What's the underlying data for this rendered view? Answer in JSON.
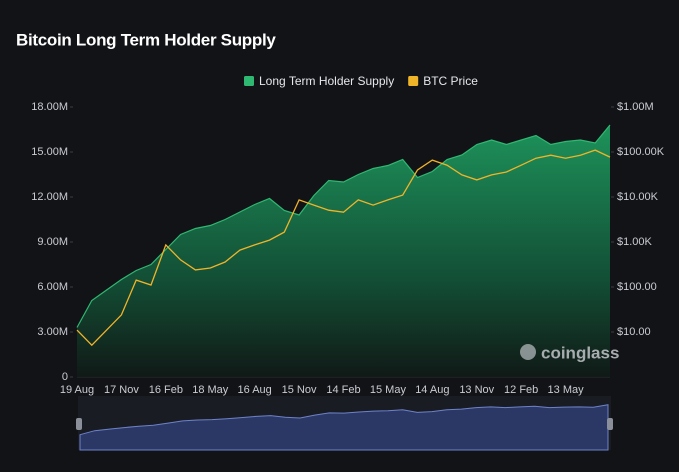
{
  "chart_data": {
    "type": "area-line",
    "title": "Bitcoin Long Term Holder Supply",
    "watermark": "coinglass",
    "categories": [
      "19 Aug",
      null,
      null,
      "17 Nov",
      null,
      null,
      "16 Feb",
      null,
      null,
      "18 May",
      null,
      null,
      "16 Aug",
      null,
      null,
      "15 Nov",
      null,
      null,
      "14 Feb",
      null,
      null,
      "15 May",
      null,
      null,
      "14 Aug",
      null,
      null,
      "13 Nov",
      null,
      null,
      "12 Feb",
      null,
      null,
      "13 May",
      null,
      null,
      null
    ],
    "series": [
      {
        "name": "Long Term Holder Supply",
        "color": "#2fb872",
        "axis": "y",
        "values": [
          3300000,
          5100000,
          5800000,
          6500000,
          7100000,
          7500000,
          8500000,
          9500000,
          9900000,
          10100000,
          10500000,
          11000000,
          11500000,
          11900000,
          11100000,
          10800000,
          12100000,
          13100000,
          13000000,
          13500000,
          13900000,
          14100000,
          14500000,
          13300000,
          13700000,
          14500000,
          14800000,
          15500000,
          15800000,
          15500000,
          15800000,
          16100000,
          15500000,
          15700000,
          15800000,
          15600000,
          16800000
        ]
      },
      {
        "name": "BTC Price",
        "color": "#f0b429",
        "axis": "y2",
        "values": [
          11,
          5.1,
          11,
          24,
          142,
          111,
          860,
          400,
          240,
          264,
          360,
          660,
          860,
          1100,
          1660,
          8600,
          6600,
          5100,
          4600,
          8600,
          6600,
          8600,
          11000,
          40000,
          66000,
          51000,
          31000,
          24000,
          31000,
          36000,
          51000,
          73000,
          85000,
          73000,
          85000,
          110000,
          77000
        ]
      }
    ],
    "ylim": [
      0,
      18000000
    ],
    "yticks": [
      {
        "value": 0,
        "label": "0"
      },
      {
        "value": 3000000,
        "label": "3.00M"
      },
      {
        "value": 6000000,
        "label": "6.00M"
      },
      {
        "value": 9000000,
        "label": "9.00M"
      },
      {
        "value": 12000000,
        "label": "12.00M"
      },
      {
        "value": 15000000,
        "label": "15.00M"
      },
      {
        "value": 18000000,
        "label": "18.00M"
      }
    ],
    "y2lim": [
      1,
      1000000
    ],
    "y2log": true,
    "y2ticks": [
      {
        "value": 10,
        "label": "$10.00"
      },
      {
        "value": 100,
        "label": "$100.00"
      },
      {
        "value": 1000,
        "label": "$1.00K"
      },
      {
        "value": 10000,
        "label": "$10.00K"
      },
      {
        "value": 100000,
        "label": "$100.00K"
      },
      {
        "value": 1000000,
        "label": "$1.00M"
      }
    ],
    "legend": "top",
    "grid": false
  }
}
